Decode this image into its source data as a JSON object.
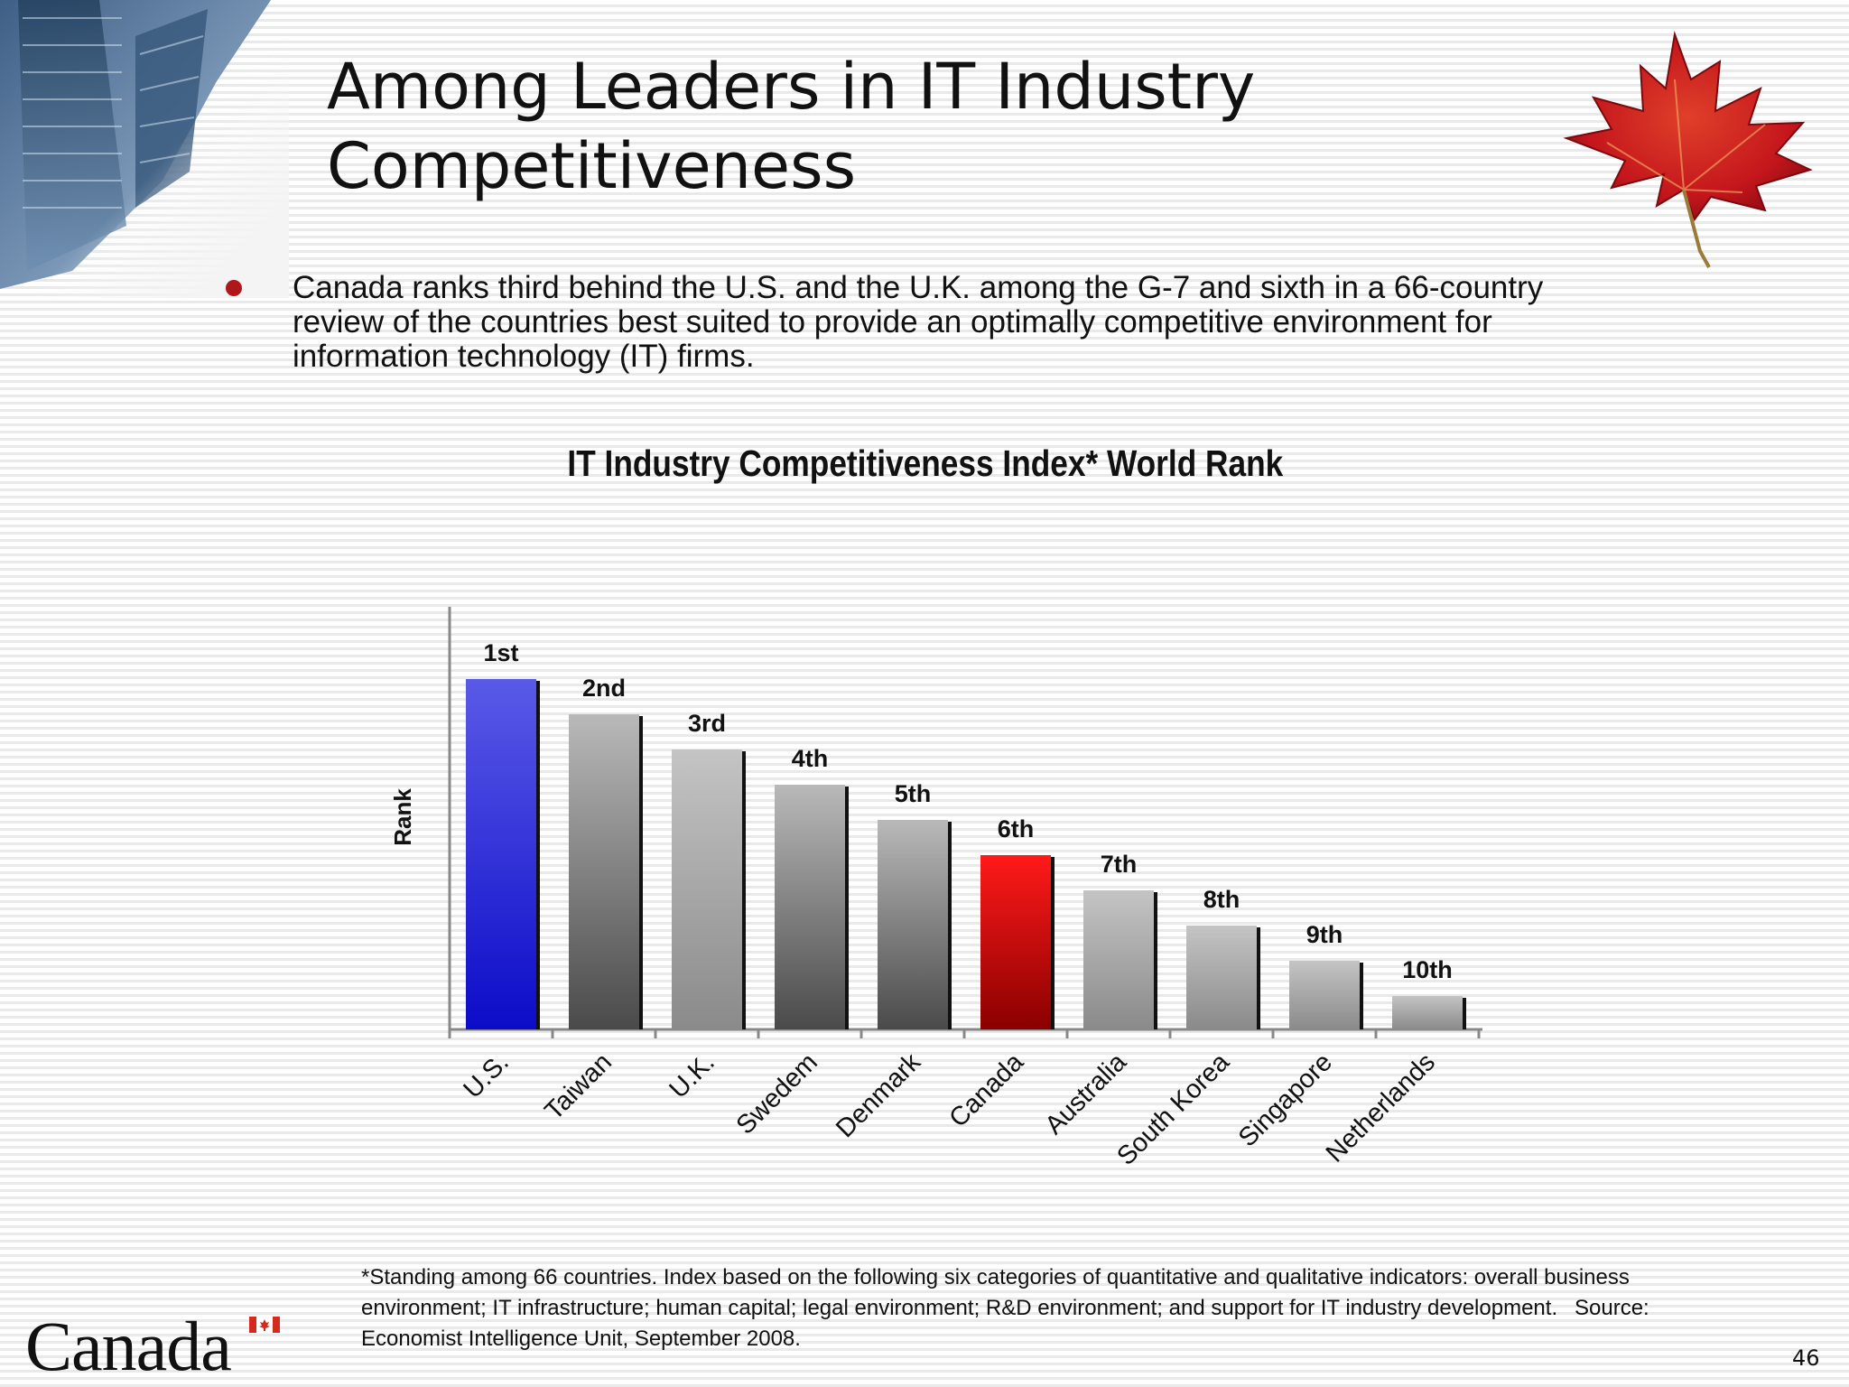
{
  "slide": {
    "title_line1": "Among Leaders in IT Industry",
    "title_line2": "Competitiveness",
    "bullet": "Canada ranks third behind the U.S. and the U.K. among the G-7 and sixth in a 66-country review of the countries best suited to provide an optimally competitive environment for information technology (IT) firms.",
    "footnote_line1": "*Standing among 66 countries. Index based on the following six categories of quantitative and qualitative indicators: overall business",
    "footnote_line2": "environment; IT infrastructure; human capital; legal environment; R&D environment; and support for IT industry development.",
    "footnote_source_label": "Source:",
    "footnote_line3": "Economist Intelligence Unit, September 2008.",
    "page_number": "46",
    "wordmark": "Canada",
    "colors": {
      "bullet": "#b0171b",
      "highlight_canada": "#e00000",
      "highlight_us": "#2a2ad8"
    }
  },
  "chart_data": {
    "type": "bar",
    "title": "IT Industry Competitiveness Index* World Rank",
    "ylabel": "Rank",
    "xlabel": "",
    "categories": [
      "U.S.",
      "Taiwan",
      "U.K.",
      "Swedem",
      "Denmark",
      "Canada",
      "Australia",
      "South Korea",
      "Singapore",
      "Netherlands"
    ],
    "values": [
      1,
      2,
      3,
      4,
      5,
      6,
      7,
      8,
      9,
      10
    ],
    "data_labels": [
      "1st",
      "2nd",
      "3rd",
      "4th",
      "5th",
      "6th",
      "7th",
      "8th",
      "9th",
      "10th"
    ],
    "y_reversed": true,
    "grid": false,
    "legend": "none",
    "bar_colors": [
      "blue",
      "dark-gray",
      "gray",
      "dark-gray",
      "dark-gray",
      "red",
      "gray",
      "gray",
      "gray",
      "gray"
    ]
  }
}
